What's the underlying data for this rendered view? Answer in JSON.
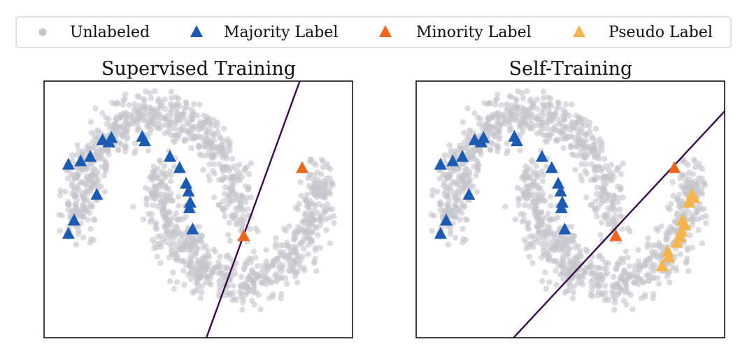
{
  "legend": {
    "items": [
      {
        "key": "unlabeled",
        "label": "Unlabeled",
        "marker": "circle",
        "color": "#c5c5cb"
      },
      {
        "key": "majority",
        "label": "Majority Label",
        "marker": "triangle",
        "color": "#1c5bb4"
      },
      {
        "key": "minority",
        "label": "Minority Label",
        "marker": "triangle",
        "color": "#f1641c"
      },
      {
        "key": "pseudo",
        "label": "Pseudo Label",
        "marker": "triangle",
        "color": "#f5b54a"
      }
    ]
  },
  "colors": {
    "unlabeled": "#c5c5cb",
    "majority": "#1c5bb4",
    "minority": "#f1641c",
    "pseudo": "#f5b54a",
    "boundary": "#3b0a4e"
  },
  "chart_data": [
    {
      "type": "scatter",
      "title": "Supervised Training",
      "xlabel": "",
      "ylabel": "",
      "xlim": [
        -1.4,
        2.4
      ],
      "ylim": [
        -1.0,
        1.3
      ],
      "grid": false,
      "series": [
        {
          "name": "Majority Label",
          "marker": "triangle",
          "points": [
            [
              -1.1,
              0.55
            ],
            [
              -0.95,
              0.58
            ],
            [
              -0.83,
              0.62
            ],
            [
              -0.68,
              0.77
            ],
            [
              -0.6,
              0.75
            ],
            [
              -0.57,
              0.79
            ],
            [
              -0.19,
              0.8
            ],
            [
              -0.16,
              0.76
            ],
            [
              0.15,
              0.62
            ],
            [
              0.27,
              0.52
            ],
            [
              0.35,
              0.38
            ],
            [
              0.38,
              0.31
            ],
            [
              0.4,
              0.21
            ],
            [
              0.39,
              0.16
            ],
            [
              0.43,
              -0.03
            ],
            [
              -1.03,
              0.05
            ],
            [
              -1.1,
              -0.07
            ],
            [
              -0.75,
              0.28
            ]
          ]
        },
        {
          "name": "Minority Label",
          "marker": "triangle",
          "points": [
            [
              1.78,
              0.52
            ],
            [
              1.06,
              -0.09
            ]
          ]
        },
        {
          "name": "Decision Boundary",
          "marker": "line",
          "points": [
            [
              0.6,
              -1.0
            ],
            [
              1.75,
              1.3
            ]
          ]
        }
      ]
    },
    {
      "type": "scatter",
      "title": "Self-Training",
      "xlabel": "",
      "ylabel": "",
      "xlim": [
        -1.4,
        2.4
      ],
      "ylim": [
        -1.0,
        1.3
      ],
      "grid": false,
      "series": [
        {
          "name": "Majority Label",
          "marker": "triangle",
          "points": [
            [
              -1.1,
              0.55
            ],
            [
              -0.95,
              0.58
            ],
            [
              -0.83,
              0.62
            ],
            [
              -0.68,
              0.77
            ],
            [
              -0.6,
              0.75
            ],
            [
              -0.57,
              0.79
            ],
            [
              -0.19,
              0.8
            ],
            [
              -0.16,
              0.76
            ],
            [
              0.15,
              0.62
            ],
            [
              0.27,
              0.52
            ],
            [
              0.35,
              0.38
            ],
            [
              0.38,
              0.31
            ],
            [
              0.4,
              0.21
            ],
            [
              0.39,
              0.16
            ],
            [
              0.43,
              -0.03
            ],
            [
              -1.03,
              0.05
            ],
            [
              -1.1,
              -0.07
            ],
            [
              -0.75,
              0.28
            ]
          ]
        },
        {
          "name": "Minority Label",
          "marker": "triangle",
          "points": [
            [
              1.78,
              0.52
            ],
            [
              1.06,
              -0.09
            ]
          ]
        },
        {
          "name": "Pseudo Label",
          "marker": "triangle",
          "points": [
            [
              2.0,
              0.28
            ],
            [
              2.02,
              0.25
            ],
            [
              1.96,
              0.21
            ],
            [
              1.88,
              0.05
            ],
            [
              1.91,
              0.01
            ],
            [
              1.87,
              -0.05
            ],
            [
              1.85,
              -0.1
            ],
            [
              1.81,
              -0.15
            ],
            [
              1.7,
              -0.23
            ],
            [
              1.71,
              -0.28
            ],
            [
              1.63,
              -0.36
            ]
          ]
        },
        {
          "name": "Decision Boundary",
          "marker": "line",
          "points": [
            [
              -0.2,
              -1.0
            ],
            [
              2.4,
              1.03
            ]
          ]
        }
      ]
    }
  ]
}
